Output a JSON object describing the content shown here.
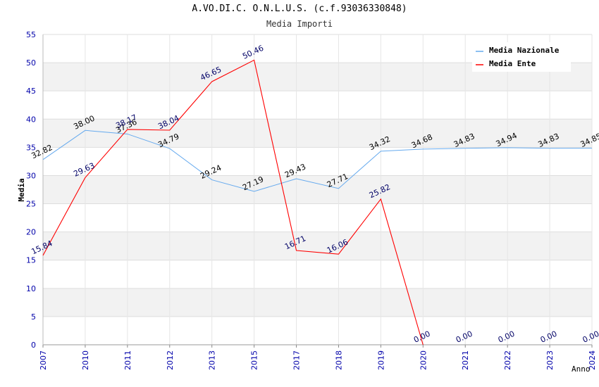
{
  "chart_data": {
    "type": "line",
    "title": "A.VO.DI.C. O.N.L.U.S. (c.f.93036330848)",
    "subtitle": "Media Importi",
    "xlabel": "Anno",
    "ylabel": "Media",
    "ylim": [
      0,
      55
    ],
    "yticks": [
      "0",
      "5",
      "10",
      "15",
      "20",
      "25",
      "30",
      "35",
      "40",
      "45",
      "50",
      "55"
    ],
    "categories": [
      "2007",
      "2010",
      "2011",
      "2012",
      "2013",
      "2015",
      "2017",
      "2018",
      "2019",
      "2020",
      "2021",
      "2022",
      "2023",
      "2024"
    ],
    "series": [
      {
        "name": "Media Nazionale",
        "color": "#66aaee",
        "label_color": "#000000",
        "values": [
          32.82,
          38.0,
          37.36,
          34.79,
          29.24,
          27.19,
          29.43,
          27.71,
          34.32,
          34.68,
          34.83,
          34.94,
          34.83,
          34.85
        ],
        "labels": [
          "32.82",
          "38.00",
          "37.36",
          "34.79",
          "29.24",
          "27.19",
          "29.43",
          "27.71",
          "34.32",
          "34.68",
          "34.83",
          "34.94",
          "34.83",
          "34.85"
        ]
      },
      {
        "name": "Media Ente",
        "color": "#ff0000",
        "label_color": "#000066",
        "values": [
          15.84,
          29.63,
          38.17,
          38.04,
          46.65,
          50.46,
          16.71,
          16.06,
          25.82,
          0.0,
          null,
          null,
          null,
          null
        ],
        "labels": [
          "15.84",
          "29.63",
          "38.17",
          "38.04",
          "46.65",
          "50.46",
          "16.71",
          "16.06",
          "25.82",
          "0.00",
          "0.00",
          "0.00",
          "0.00",
          "0.00"
        ]
      }
    ],
    "legend": "top-right",
    "grid": true
  }
}
